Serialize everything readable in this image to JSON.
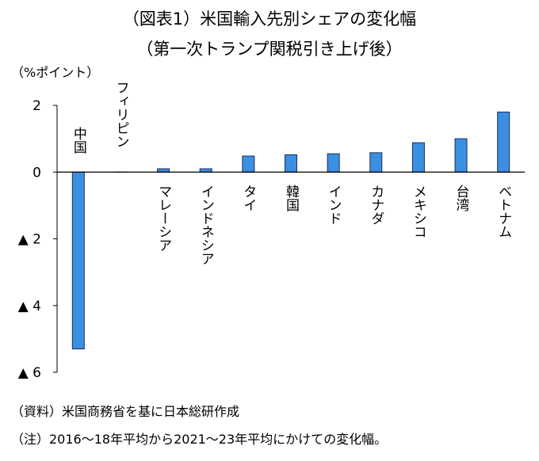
{
  "chart_data": {
    "type": "bar",
    "title": "（図表1）米国輸入先別シェアの変化幅",
    "subtitle": "（第一次トランプ関税引き上げ後）",
    "ylabel": "（%ポイント）",
    "ylim": [
      -6,
      2
    ],
    "yticks": [
      2,
      0,
      -2,
      -4,
      -6
    ],
    "ytick_labels": [
      "2",
      "0",
      "▲ 2",
      "▲ 4",
      "▲ 6"
    ],
    "categories": [
      "中国",
      "フィリピン",
      "マレーシア",
      "インドネシア",
      "タイ",
      "韓国",
      "インド",
      "カナダ",
      "メキシコ",
      "台湾",
      "ベトナム"
    ],
    "values": [
      -5.3,
      0.0,
      0.1,
      0.1,
      0.48,
      0.52,
      0.55,
      0.58,
      0.88,
      1.0,
      1.8
    ],
    "bar_color": "#3b8fe0",
    "grid": false,
    "legend": "none"
  },
  "notes": {
    "source": "（資料）米国商務省を基に日本総研作成",
    "note": "（注）2016～18年平均から2021～23年平均にかけての変化幅。"
  }
}
